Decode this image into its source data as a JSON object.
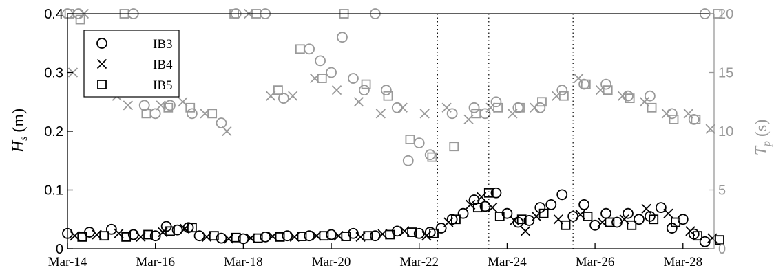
{
  "chart_data": {
    "type": "scatter",
    "title": "",
    "xlabel": "",
    "ylabel": "H_s (m)",
    "ylabel_parts": {
      "sym": "H",
      "sub": "s",
      "unit": " (m)"
    },
    "y2label": "T_p (s)",
    "y2label_parts": {
      "sym": "T",
      "sub": "p",
      "unit": " (s)"
    },
    "x_axis": {
      "type": "date",
      "range": [
        "2021-03-14",
        "2021-03-28T17:00"
      ]
    },
    "x_ticks": [
      "Mar-14",
      "Mar-16",
      "Mar-18",
      "Mar-20",
      "Mar-22",
      "Mar-24",
      "Mar-26",
      "Mar-28"
    ],
    "ylim": [
      0,
      0.4
    ],
    "y_ticks": [
      "0",
      "0.1",
      "0.2",
      "0.3",
      "0.4"
    ],
    "y2lim": [
      0,
      20
    ],
    "y2_ticks": [
      "0",
      "5",
      "10",
      "15",
      "20"
    ],
    "grid": false,
    "legend": {
      "position": "top-left",
      "entries": [
        "IB3",
        "IB4",
        "IB5"
      ]
    },
    "vlines_dotted": [
      "2021-03-22T10:00",
      "2021-03-23T14:00",
      "2021-03-25T12:00"
    ],
    "colors": {
      "hs": "#000000",
      "tp": "#999999"
    },
    "hs_series": [
      {
        "name": "IB3",
        "marker": "circle",
        "x": [
          "2021-03-14",
          "2021-03-14T12:00",
          "2021-03-15",
          "2021-03-15T12:00",
          "2021-03-16",
          "2021-03-16T06:00",
          "2021-03-16T12:00",
          "2021-03-16T18:00",
          "2021-03-17",
          "2021-03-17T12:00",
          "2021-03-18",
          "2021-03-18T12:00",
          "2021-03-19",
          "2021-03-19T12:00",
          "2021-03-20",
          "2021-03-20T12:00",
          "2021-03-21",
          "2021-03-21T12:00",
          "2021-03-22",
          "2021-03-22T06:00",
          "2021-03-22T12:00",
          "2021-03-22T18:00",
          "2021-03-23",
          "2021-03-23T06:00",
          "2021-03-23T12:00",
          "2021-03-23T18:00",
          "2021-03-24",
          "2021-03-24T06:00",
          "2021-03-24T12:00",
          "2021-03-24T18:00",
          "2021-03-25",
          "2021-03-25T06:00",
          "2021-03-25T12:00",
          "2021-03-25T18:00",
          "2021-03-26",
          "2021-03-26T06:00",
          "2021-03-26T12:00",
          "2021-03-26T18:00",
          "2021-03-27",
          "2021-03-27T06:00",
          "2021-03-27T12:00",
          "2021-03-27T18:00",
          "2021-03-28",
          "2021-03-28T06:00",
          "2021-03-28T12:00"
        ],
        "y": [
          0.026,
          0.028,
          0.033,
          0.024,
          0.022,
          0.038,
          0.032,
          0.036,
          0.022,
          0.018,
          0.017,
          0.02,
          0.022,
          0.022,
          0.024,
          0.026,
          0.022,
          0.03,
          0.026,
          0.028,
          0.035,
          0.05,
          0.06,
          0.083,
          0.072,
          0.095,
          0.06,
          0.045,
          0.048,
          0.07,
          0.075,
          0.092,
          0.055,
          0.075,
          0.04,
          0.06,
          0.045,
          0.06,
          0.05,
          0.055,
          0.07,
          0.035,
          0.05,
          0.025,
          0.012
        ]
      },
      {
        "name": "IB4",
        "marker": "x",
        "x": [
          "2021-03-14T04:00",
          "2021-03-14T16:00",
          "2021-03-15T04:00",
          "2021-03-15T16:00",
          "2021-03-16T04:00",
          "2021-03-16T16:00",
          "2021-03-17T04:00",
          "2021-03-17T16:00",
          "2021-03-18T04:00",
          "2021-03-18T16:00",
          "2021-03-19T04:00",
          "2021-03-19T16:00",
          "2021-03-20T04:00",
          "2021-03-20T16:00",
          "2021-03-21T04:00",
          "2021-03-21T16:00",
          "2021-03-22T04:00",
          "2021-03-22T16:00",
          "2021-03-23T04:00",
          "2021-03-23T10:00",
          "2021-03-23T16:00",
          "2021-03-24T04:00",
          "2021-03-24T10:00",
          "2021-03-24T16:00",
          "2021-03-25T04:00",
          "2021-03-25T16:00",
          "2021-03-26T04:00",
          "2021-03-26T16:00",
          "2021-03-27T04:00",
          "2021-03-27T16:00",
          "2021-03-28T04:00",
          "2021-03-28T16:00"
        ],
        "y": [
          0.022,
          0.024,
          0.026,
          0.02,
          0.028,
          0.034,
          0.02,
          0.017,
          0.018,
          0.021,
          0.02,
          0.022,
          0.022,
          0.02,
          0.025,
          0.03,
          0.022,
          0.045,
          0.075,
          0.088,
          0.07,
          0.048,
          0.03,
          0.055,
          0.05,
          0.058,
          0.045,
          0.05,
          0.068,
          0.06,
          0.03,
          0.018
        ]
      },
      {
        "name": "IB5",
        "marker": "square",
        "x": [
          "2021-03-14T08:00",
          "2021-03-14T20:00",
          "2021-03-15T08:00",
          "2021-03-15T20:00",
          "2021-03-16T08:00",
          "2021-03-16T20:00",
          "2021-03-17T08:00",
          "2021-03-17T20:00",
          "2021-03-18T08:00",
          "2021-03-18T20:00",
          "2021-03-19T08:00",
          "2021-03-19T20:00",
          "2021-03-20T08:00",
          "2021-03-20T20:00",
          "2021-03-21T08:00",
          "2021-03-21T20:00",
          "2021-03-22T08:00",
          "2021-03-22T20:00",
          "2021-03-23T08:00",
          "2021-03-23T14:00",
          "2021-03-23T20:00",
          "2021-03-24T08:00",
          "2021-03-24T20:00",
          "2021-03-25T08:00",
          "2021-03-25T20:00",
          "2021-03-26T08:00",
          "2021-03-26T20:00",
          "2021-03-27T08:00",
          "2021-03-27T20:00",
          "2021-03-28T08:00",
          "2021-03-28T20:00"
        ],
        "y": [
          0.02,
          0.022,
          0.02,
          0.024,
          0.03,
          0.036,
          0.022,
          0.019,
          0.018,
          0.02,
          0.021,
          0.022,
          0.021,
          0.022,
          0.024,
          0.028,
          0.026,
          0.05,
          0.07,
          0.095,
          0.055,
          0.05,
          0.06,
          0.04,
          0.055,
          0.045,
          0.04,
          0.05,
          0.045,
          0.022,
          0.015
        ]
      }
    ],
    "tp_series": [
      {
        "name": "IB3",
        "marker": "circle",
        "x": [
          "2021-03-14",
          "2021-03-14T06:00",
          "2021-03-15T12:00",
          "2021-03-15T18:00",
          "2021-03-16",
          "2021-03-16T08:00",
          "2021-03-16T20:00",
          "2021-03-17T12:00",
          "2021-03-17T20:00",
          "2021-03-18T12:00",
          "2021-03-18T22:00",
          "2021-03-19T12:00",
          "2021-03-19T18:00",
          "2021-03-20",
          "2021-03-20T06:00",
          "2021-03-20T12:00",
          "2021-03-20T18:00",
          "2021-03-21",
          "2021-03-21T06:00",
          "2021-03-21T12:00",
          "2021-03-21T18:00",
          "2021-03-22",
          "2021-03-22T06:00",
          "2021-03-22T18:00",
          "2021-03-23T06:00",
          "2021-03-23T12:00",
          "2021-03-23T18:00",
          "2021-03-24T06:00",
          "2021-03-24T18:00",
          "2021-03-25T06:00",
          "2021-03-25T18:00",
          "2021-03-26T06:00",
          "2021-03-26T18:00",
          "2021-03-27T06:00",
          "2021-03-27T18:00",
          "2021-03-28T06:00",
          "2021-03-28T12:00"
        ],
        "y": [
          20,
          20,
          20,
          12.2,
          11.5,
          12.2,
          11.5,
          10.7,
          20,
          20,
          12.8,
          17,
          16,
          15,
          18,
          14.5,
          13.5,
          20,
          13.5,
          12,
          7.5,
          9,
          8,
          11.5,
          12,
          11.5,
          12.5,
          12,
          12,
          13.5,
          14,
          14,
          13,
          13,
          11.5,
          11,
          20
        ]
      },
      {
        "name": "IB4",
        "marker": "x",
        "x": [
          "2021-03-14T03:00",
          "2021-03-14T09:00",
          "2021-03-15T03:00",
          "2021-03-15T09:00",
          "2021-03-16T03:00",
          "2021-03-16T15:00",
          "2021-03-17T03:00",
          "2021-03-17T15:00",
          "2021-03-18T03:00",
          "2021-03-18T15:00",
          "2021-03-19T03:00",
          "2021-03-19T15:00",
          "2021-03-20T03:00",
          "2021-03-20T15:00",
          "2021-03-21T03:00",
          "2021-03-21T15:00",
          "2021-03-22T03:00",
          "2021-03-22T15:00",
          "2021-03-23T03:00",
          "2021-03-23T15:00",
          "2021-03-24T03:00",
          "2021-03-24T15:00",
          "2021-03-25T03:00",
          "2021-03-25T15:00",
          "2021-03-26T03:00",
          "2021-03-26T15:00",
          "2021-03-27T03:00",
          "2021-03-27T15:00",
          "2021-03-28T03:00",
          "2021-03-28T15:00"
        ],
        "y": [
          15,
          20,
          13,
          12.2,
          12.2,
          12.5,
          11.5,
          10,
          20,
          13,
          13,
          14.5,
          13.5,
          12.5,
          11.5,
          12,
          11.5,
          12,
          11,
          12,
          11.5,
          12,
          13,
          14.5,
          13.5,
          13,
          12.5,
          11.5,
          11.5,
          10.2
        ]
      },
      {
        "name": "IB5",
        "marker": "square",
        "x": [
          "2021-03-14T01:00",
          "2021-03-14T07:00",
          "2021-03-15T07:00",
          "2021-03-15T19:00",
          "2021-03-16T07:00",
          "2021-03-16T19:00",
          "2021-03-17T07:00",
          "2021-03-17T19:00",
          "2021-03-18T07:00",
          "2021-03-18T19:00",
          "2021-03-19T07:00",
          "2021-03-19T19:00",
          "2021-03-20T07:00",
          "2021-03-20T19:00",
          "2021-03-21T07:00",
          "2021-03-21T19:00",
          "2021-03-22T07:00",
          "2021-03-22T19:00",
          "2021-03-23T07:00",
          "2021-03-23T19:00",
          "2021-03-24T07:00",
          "2021-03-24T19:00",
          "2021-03-25T07:00",
          "2021-03-25T19:00",
          "2021-03-26T07:00",
          "2021-03-26T19:00",
          "2021-03-27T07:00",
          "2021-03-27T19:00",
          "2021-03-28T07:00",
          "2021-03-28T19:00"
        ],
        "y": [
          20,
          19.5,
          20,
          11.5,
          12,
          12,
          11.5,
          20,
          20,
          13.5,
          17,
          14.5,
          20,
          14,
          13,
          9.3,
          7.8,
          8.7,
          11.5,
          12,
          12,
          12.5,
          13,
          14,
          13.5,
          12.8,
          12,
          11,
          11,
          20
        ]
      }
    ]
  }
}
